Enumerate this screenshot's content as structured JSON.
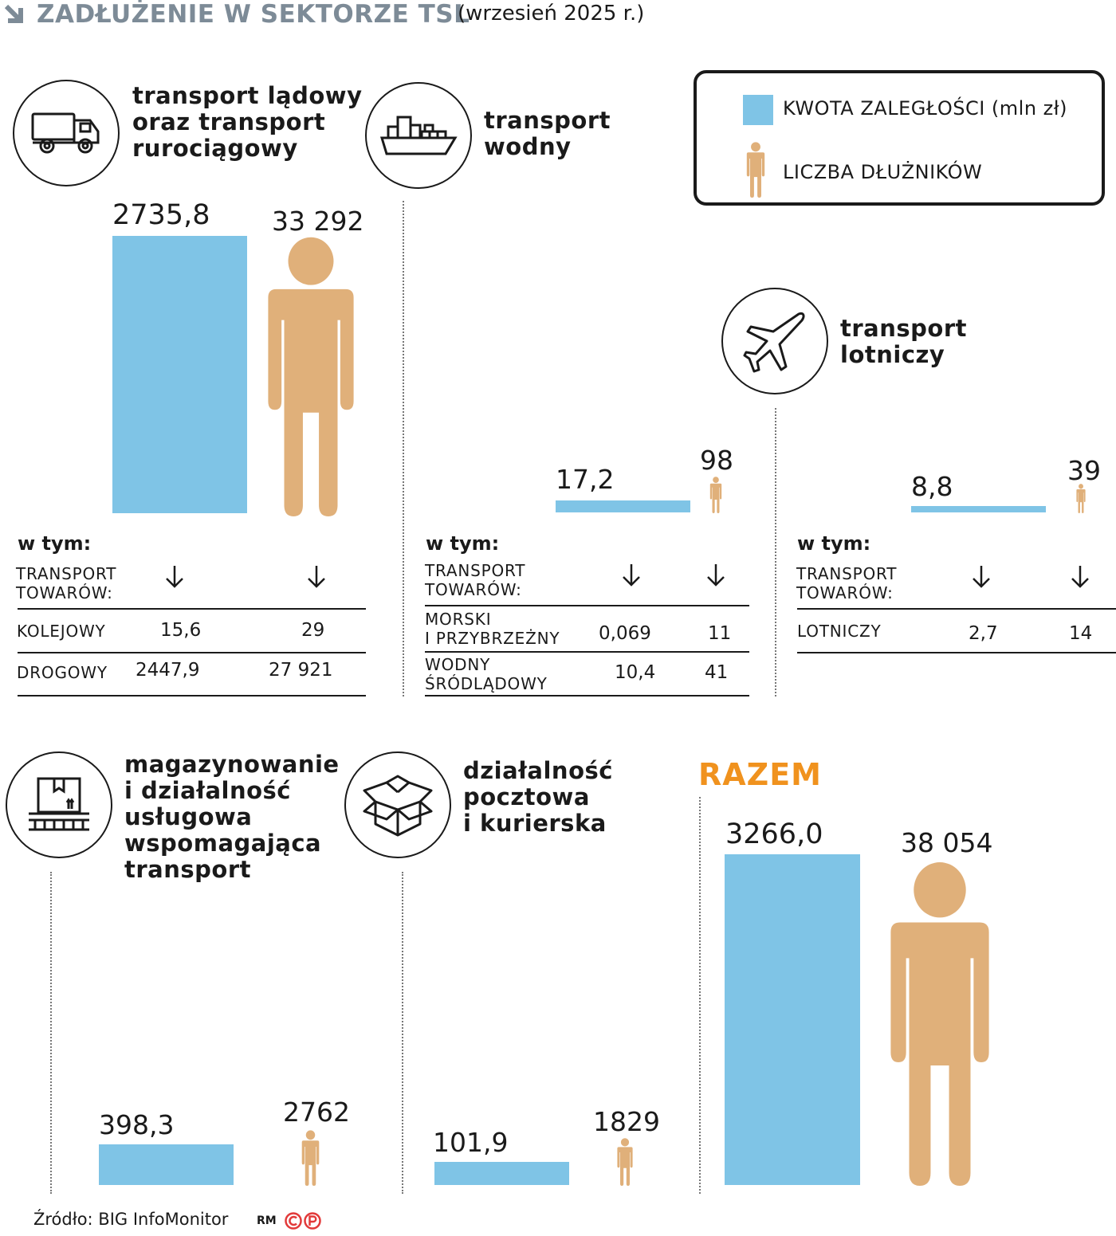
{
  "header": {
    "title": "ZADŁUŻENIE W SEKTORZE TSL",
    "subtitle": "(wrzesień 2025 r.)"
  },
  "legend": {
    "amount_label": "KWOTA ZALEGŁOŚCI (mln zł)",
    "debtors_label": "LICZBA DŁUŻNIKÓW"
  },
  "colors": {
    "bar": "#7fc4e6",
    "person": "#e0b07a",
    "header_title": "#7d8b97",
    "razem": "#f0921e"
  },
  "sectors": {
    "land": {
      "icon": "truck-icon",
      "title": "transport lądowy\noraz transport\nrurociągowy",
      "amount_label": "2735,8",
      "debtors_label": "33 292",
      "breakdown": {
        "heading": "w tym:",
        "sub_heading": "TRANSPORT\nTOWARÓW:",
        "rows": [
          {
            "label": "KOLEJOWY",
            "amount": "15,6",
            "debtors": "29"
          },
          {
            "label": "DROGOWY",
            "amount": "2447,9",
            "debtors": "27 921"
          }
        ]
      }
    },
    "water": {
      "icon": "ship-icon",
      "title": "transport\nwodny",
      "amount_label": "17,2",
      "debtors_label": "98",
      "breakdown": {
        "heading": "w tym:",
        "sub_heading": "TRANSPORT\nTOWARÓW:",
        "rows": [
          {
            "label": "MORSKI\nI PRZYBRZEŻNY",
            "amount": "0,069",
            "debtors": "11"
          },
          {
            "label": "WODNY\nŚRÓDLĄDOWY",
            "amount": "10,4",
            "debtors": "41"
          }
        ]
      }
    },
    "air": {
      "icon": "airplane-icon",
      "title": "transport\nlotniczy",
      "amount_label": "8,8",
      "debtors_label": "39",
      "breakdown": {
        "heading": "w tym:",
        "sub_heading": "TRANSPORT\nTOWARÓW:",
        "rows": [
          {
            "label": "LOTNICZY",
            "amount": "2,7",
            "debtors": "14"
          }
        ]
      }
    },
    "storage": {
      "icon": "warehouse-box-icon",
      "title": "magazynowanie\ni działalność\nusługowa\nwspomagająca\ntransport",
      "amount_label": "398,3",
      "debtors_label": "2762"
    },
    "postal": {
      "icon": "parcel-box-icon",
      "title": "działalność\npocztowa\ni kurierska",
      "amount_label": "101,9",
      "debtors_label": "1829"
    }
  },
  "total": {
    "label": "RAZEM",
    "amount_label": "3266,0",
    "debtors_label": "38 054"
  },
  "chart_data": {
    "type": "bar",
    "title": "ZADŁUŻENIE W SEKTORZE TSL",
    "subtitle": "(wrzesień 2025 r.)",
    "categories": [
      "transport lądowy oraz transport rurociągowy",
      "transport wodny",
      "transport lotniczy",
      "magazynowanie i działalność usługowa wspomagająca transport",
      "działalność pocztowa i kurierska",
      "RAZEM"
    ],
    "series": [
      {
        "name": "KWOTA ZALEGŁOŚCI (mln zł)",
        "values": [
          2735.8,
          17.2,
          8.8,
          398.3,
          101.9,
          3266.0
        ]
      },
      {
        "name": "LICZBA DŁUŻNIKÓW",
        "values": [
          33292,
          98,
          39,
          2762,
          1829,
          38054
        ]
      }
    ],
    "breakdown": [
      {
        "sector": "transport lądowy oraz transport rurociągowy",
        "item": "KOLEJOWY",
        "amount": 15.6,
        "debtors": 29
      },
      {
        "sector": "transport lądowy oraz transport rurociągowy",
        "item": "DROGOWY",
        "amount": 2447.9,
        "debtors": 27921
      },
      {
        "sector": "transport wodny",
        "item": "MORSKI I PRZYBRZEŻNY",
        "amount": 0.069,
        "debtors": 11
      },
      {
        "sector": "transport wodny",
        "item": "WODNY ŚRÓDLĄDOWY",
        "amount": 10.4,
        "debtors": 41
      },
      {
        "sector": "transport lotniczy",
        "item": "LOTNICZY",
        "amount": 2.7,
        "debtors": 14
      }
    ],
    "legend_position": "top-right",
    "grid": false
  },
  "footer": {
    "source": "Źródło: BIG InfoMonitor",
    "author": "RM"
  }
}
